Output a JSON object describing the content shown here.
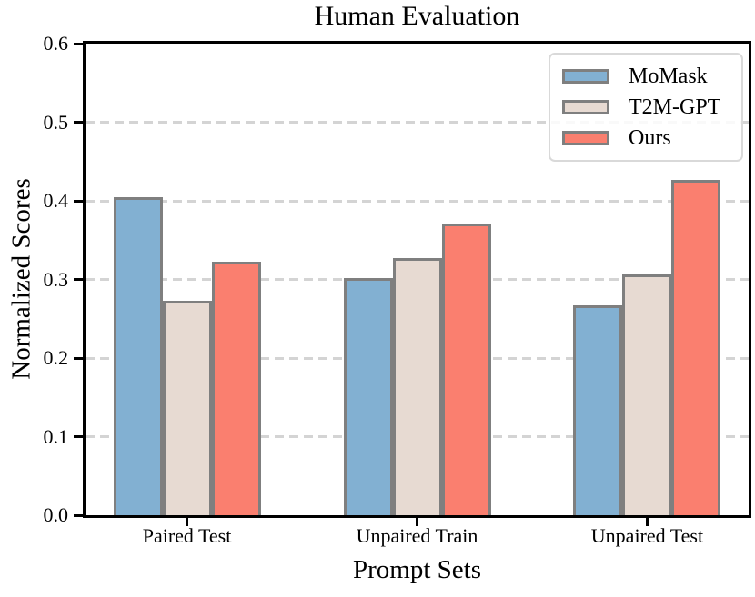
{
  "chart_data": {
    "type": "bar",
    "title": "Human Evaluation",
    "xlabel": "Prompt Sets",
    "ylabel": "Normalized Scores",
    "categories": [
      "Paired Test",
      "Unpaired Train",
      "Unpaired Test"
    ],
    "series": [
      {
        "name": "MoMask",
        "color": "#82B0D2",
        "values": [
          0.405,
          0.302,
          0.267
        ]
      },
      {
        "name": "T2M-GPT",
        "color": "#E7DAD2",
        "values": [
          0.273,
          0.327,
          0.306
        ]
      },
      {
        "name": "Ours",
        "color": "#FA7F6F",
        "values": [
          0.322,
          0.371,
          0.427
        ]
      }
    ],
    "ylim": [
      0.0,
      0.6
    ],
    "yticks": [
      "0.0",
      "0.1",
      "0.2",
      "0.3",
      "0.4",
      "0.5",
      "0.6"
    ],
    "grid": "horizontal-dashed",
    "gridline_color": "#d4d4d4",
    "bar_edge_color": "#7f7f7f",
    "axis_color": "#000000",
    "legend": {
      "position": "upper-right",
      "entries": [
        "MoMask",
        "T2M-GPT",
        "Ours"
      ]
    }
  }
}
